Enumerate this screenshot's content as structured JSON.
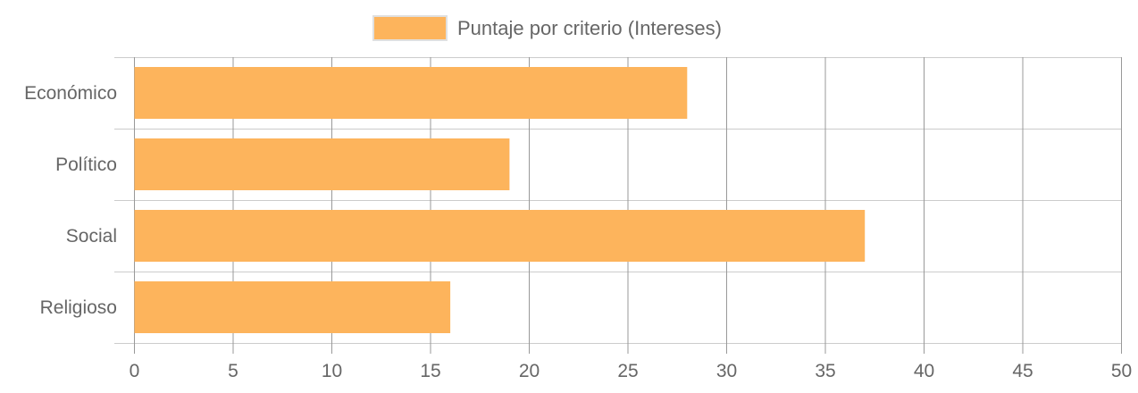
{
  "chart_data": {
    "type": "bar",
    "orientation": "horizontal",
    "categories": [
      "Económico",
      "Político",
      "Social",
      "Religioso"
    ],
    "series": [
      {
        "name": "Puntaje por criterio (Intereses)",
        "values": [
          28,
          19,
          37,
          16
        ]
      }
    ],
    "xlim": [
      0,
      50
    ],
    "x_ticks": [
      0,
      5,
      10,
      15,
      20,
      25,
      30,
      35,
      40,
      45,
      50
    ],
    "grid": true,
    "legend_position": "top-center",
    "colors": {
      "bar_fill": "#FDB45C",
      "grid": "#cccccc",
      "tick_line": "#999999",
      "text": "#666666"
    }
  }
}
